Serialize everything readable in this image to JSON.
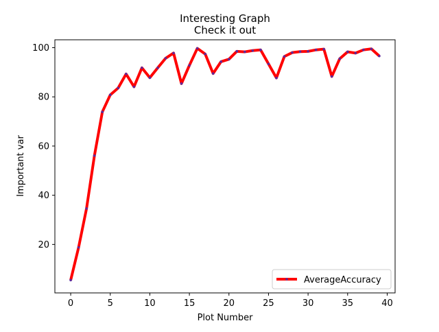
{
  "chart_data": {
    "type": "line",
    "title": "Interesting Graph",
    "subtitle": "Check it out",
    "xlabel": "Plot Number",
    "ylabel": "Important var",
    "xlim": [
      -2,
      41
    ],
    "ylim": [
      0.3,
      103.2
    ],
    "xticks": [
      0,
      5,
      10,
      15,
      20,
      25,
      30,
      35,
      40
    ],
    "yticks": [
      20,
      40,
      60,
      80,
      100
    ],
    "grid": false,
    "legend_position": "lower right",
    "series": [
      {
        "name": "AverageAccuracy",
        "line_color": "#ff0000",
        "marker_color": "#5b2a9e",
        "x": [
          0,
          1,
          2,
          3,
          4,
          5,
          6,
          7,
          8,
          9,
          10,
          11,
          12,
          13,
          14,
          15,
          16,
          17,
          18,
          19,
          20,
          21,
          22,
          23,
          24,
          25,
          26,
          27,
          28,
          29,
          30,
          31,
          32,
          33,
          34,
          35,
          36,
          37,
          38,
          39
        ],
        "values": [
          5.5,
          18.8,
          34.6,
          56.1,
          73.9,
          80.8,
          83.6,
          89.3,
          84.1,
          91.8,
          87.8,
          91.8,
          95.7,
          97.8,
          85.4,
          92.8,
          99.7,
          97.4,
          89.5,
          94.3,
          95.3,
          98.5,
          98.3,
          98.8,
          99.1,
          93.4,
          87.7,
          96.4,
          98.0,
          98.4,
          98.5,
          99.1,
          99.4,
          88.3,
          95.5,
          98.3,
          97.8,
          99.1,
          99.5,
          96.6
        ]
      }
    ]
  }
}
